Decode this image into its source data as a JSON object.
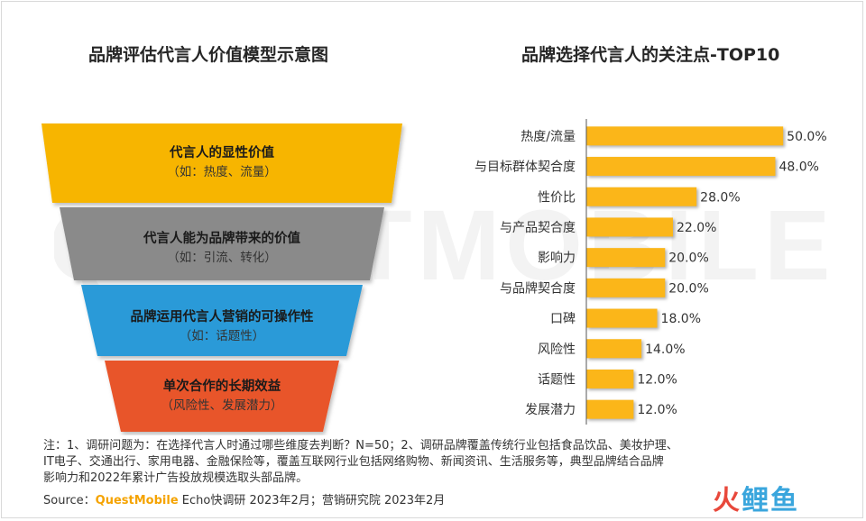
{
  "titles": {
    "left": "品牌评估代言人价值模型示意图",
    "right": "品牌选择代言人的关注点-TOP10"
  },
  "funnel": {
    "stages": [
      {
        "label": "代言人的显性价值",
        "sub": "（如：热度、流量）",
        "color": "#f7b500"
      },
      {
        "label": "代言人能为品牌带来的价值",
        "sub": "（如：引流、转化）",
        "color": "#8a8a8a"
      },
      {
        "label": "品牌运用代言人营销的可操作性",
        "sub": "（如：话题性）",
        "color": "#2b9ad8"
      },
      {
        "label": "单次合作的长期效益",
        "sub": "（风险性、发展潜力）",
        "color": "#e8552c"
      }
    ]
  },
  "chart_data": {
    "type": "bar",
    "orientation": "horizontal",
    "title": "品牌选择代言人的关注点-TOP10",
    "categories": [
      "热度/流量",
      "与目标群体契合度",
      "性价比",
      "与产品契合度",
      "影响力",
      "与品牌契合度",
      "口碑",
      "风险性",
      "话题性",
      "发展潜力"
    ],
    "values": [
      50.0,
      48.0,
      28.0,
      22.0,
      20.0,
      20.0,
      18.0,
      14.0,
      12.0,
      12.0
    ],
    "value_labels": [
      "50.0%",
      "48.0%",
      "28.0%",
      "22.0%",
      "20.0%",
      "20.0%",
      "18.0%",
      "14.0%",
      "12.0%",
      "12.0%"
    ],
    "xlim": [
      0,
      55
    ],
    "bar_color": "#fbb619",
    "grid": false
  },
  "footnote": {
    "lines": [
      "注：1、调研问题为：在选择代言人时通过哪些维度去判断？N=50；2、调研品牌覆盖传统行业包括食品饮品、美妆护理、",
      "IT电子、交通出行、家用电器、金融保险等，覆盖互联网行业包括网络购物、新闻资讯、生活服务等，典型品牌结合品牌",
      "影响力和2022年累计广告投放规模选取头部品牌。"
    ],
    "source_prefix": "Source：",
    "source_brand": "QuestMobile",
    "source_rest": " Echo快调研 2023年2月；营销研究院 2023年2月"
  },
  "watermark": "QUESTMOBILE",
  "logo": {
    "part1": "火",
    "part2": "鲤鱼"
  }
}
